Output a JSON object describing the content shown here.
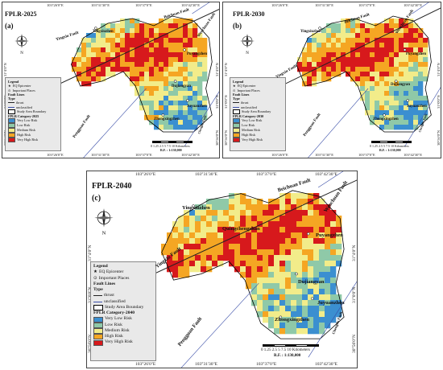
{
  "colors": {
    "very_low": "#3b8fd0",
    "low": "#8fc9a8",
    "medium": "#f2ec8a",
    "high": "#f5a623",
    "very_high": "#d7191c",
    "boundary": "#000000",
    "fault": "#3a4ea8"
  },
  "panels": [
    {
      "id": "a",
      "title": "FPLR-2025",
      "label": "(a)",
      "top_coords": [
        "103°26'0\"E",
        "103°31'30\"E",
        "103°37'0\"E",
        "103°42'30\"E"
      ],
      "bottom_coords": [
        "103°26'0\"E",
        "103°31'30\"E",
        "103°37'0\"E",
        "103°42'30\"E"
      ],
      "left_coords": [
        "31°4'0\"N",
        "31°0'0\"N",
        "30°56'0\"N"
      ],
      "right_coords": [
        "31°4'0\"N",
        "31°0'0\"N",
        "30°56'0\"N"
      ],
      "legend": {
        "title": "Legend",
        "epicenter": "EQ Epicenter",
        "places": "Important Places",
        "fault_lines": "Fault Lines",
        "type": "Type",
        "thrust": "thrust",
        "unclassified": "unclassified",
        "boundary": "Study Area Boundary",
        "category": "FPLR Category-2025",
        "classes": [
          "Very Low Risk",
          "Low Risk",
          "Medium Risk",
          "High Risk",
          "Very High Risk"
        ]
      },
      "scale_ticks": [
        "0",
        "1.25",
        "2.5",
        "5",
        "7.5",
        "10"
      ],
      "scale_unit": "Kilometers",
      "scale_ratio": "R.F. : 1:130,000",
      "places": [
        "Yingxiuzhen",
        "Puyangzhen",
        "Dujiangyan",
        "Juyuanzhen",
        "Zhongxingzhen"
      ],
      "faults": [
        "Beichuan Fault",
        "Yingxiu Fault",
        "Wenchuan Fault",
        "Pengguan Fault",
        "Chengdu Fault"
      ]
    },
    {
      "id": "b",
      "title": "FPLR-2030",
      "label": "(b)",
      "top_coords": [
        "103°26'0\"E",
        "103°31'30\"E",
        "103°37'0\"E",
        "103°42'30\"E"
      ],
      "bottom_coords": [
        "103°26'0\"E",
        "103°31'30\"E",
        "103°37'0\"E",
        "103°42'30\"E"
      ],
      "left_coords": [
        "31°4'0\"N",
        "31°0'0\"N",
        "30°56'0\"N"
      ],
      "right_coords": [
        "31°4'0\"N",
        "31°0'0\"N",
        "30°56'0\"N"
      ],
      "legend": {
        "title": "Legend",
        "epicenter": "EQ Epicenter",
        "places": "Important Places",
        "fault_lines": "Fault Lines",
        "type": "Type",
        "thrust": "thrust",
        "unclassified": "unclassified",
        "boundary": "Study Area Boundary",
        "category": "FPLR Category-2030",
        "classes": [
          "Very Low Risk",
          "Low Risk",
          "Medium Risk",
          "High Risk",
          "Very High Risk"
        ]
      },
      "scale_ticks": [
        "0",
        "1.25",
        "2.5",
        "5",
        "7.5",
        "10"
      ],
      "scale_unit": "Kilometers",
      "scale_ratio": "R.F. : 1:130,000",
      "places": [
        "Yingxiuzhen",
        "Puyangzhen",
        "Dujiangyan",
        "Juyuanzhen",
        "Zhongxingzhen"
      ],
      "faults": [
        "Beichuan Fault",
        "Yingxiu Fault",
        "Wenchuan Fault",
        "Pengguan Fault",
        "Chengdu Fault"
      ]
    },
    {
      "id": "c",
      "title": "FPLR-2040",
      "label": "(c)",
      "top_coords": [
        "103°26'0\"E",
        "103°31'30\"E",
        "103°37'0\"E",
        "103°42'30\"E"
      ],
      "bottom_coords": [
        "103°26'0\"E",
        "103°31'30\"E",
        "103°37'0\"E",
        "103°42'30\"E"
      ],
      "left_coords": [
        "31°4'0\"N",
        "31°0'0\"N",
        "30°56'0\"N"
      ],
      "right_coords": [
        "31°4'0\"N",
        "31°0'0\"N",
        "30°56'0\"N"
      ],
      "legend": {
        "title": "Legend",
        "epicenter": "EQ Epicenter",
        "places": "Important Places",
        "fault_lines": "Fault Lines",
        "type": "Type",
        "thrust": "thrust",
        "unclassified": "unclassified",
        "boundary": "Study Area Boundary",
        "category": "FPLR Category-2040",
        "classes": [
          "Very Low Risk",
          "Low Risk",
          "Medium Risk",
          "High Risk",
          "Very High Risk"
        ]
      },
      "scale_ticks": [
        "0",
        "1.25",
        "2.5",
        "5",
        "7.5",
        "10"
      ],
      "scale_unit": "Kilometers",
      "scale_ratio": "R.F. : 1:130,000",
      "places": [
        "Yingxiuzhen",
        "Puyangzhen",
        "Dujiangyan",
        "Juyuanzhen",
        "Zhongxingzhen",
        "Quingchengshan"
      ],
      "faults": [
        "Beichuan Fault",
        "Yingxiu Fault",
        "Wenchuan Fault",
        "Pengguan Fault",
        "Chengdu Fault"
      ]
    }
  ],
  "compass_label": "N"
}
